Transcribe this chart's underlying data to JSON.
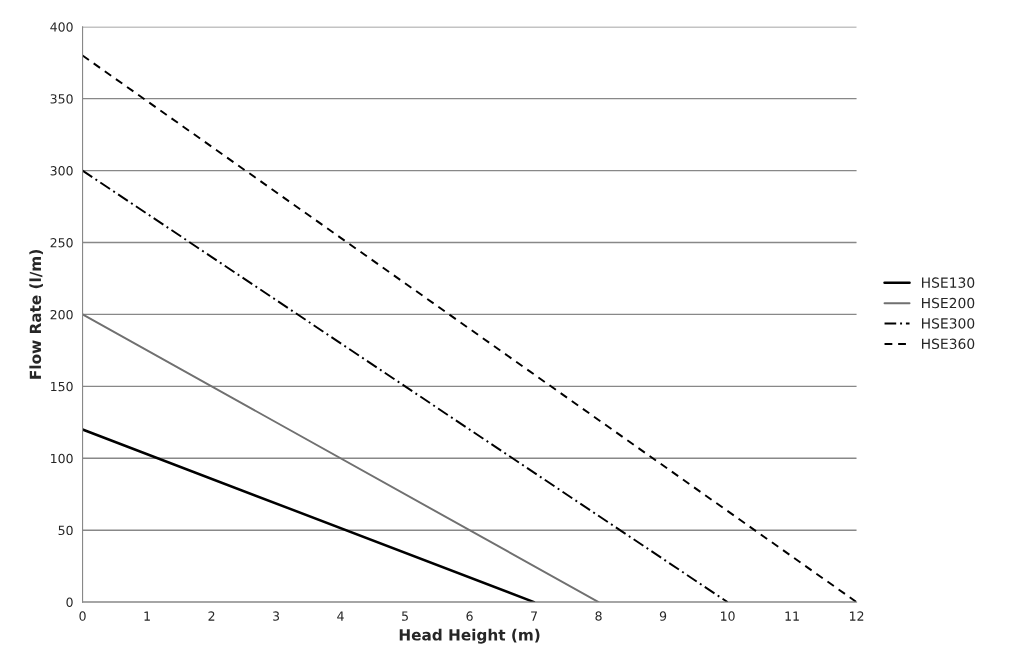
{
  "chart_data": {
    "type": "line",
    "xlabel": "Head Height (m)",
    "ylabel": "Flow Rate (l/m)",
    "xlim": [
      0,
      12
    ],
    "xticks": [
      0,
      1,
      2,
      3,
      4,
      5,
      6,
      7,
      8,
      9,
      10,
      11,
      12
    ],
    "ylim": [
      0,
      400
    ],
    "yticks": [
      0,
      50,
      100,
      150,
      200,
      250,
      300,
      350,
      400
    ],
    "grid": "y",
    "legend": "right",
    "marker": "none",
    "series": [
      {
        "name": "HSE130",
        "color": "#000000",
        "x": [
          0,
          7
        ],
        "values": [
          120,
          0
        ],
        "line_style": "solid"
      },
      {
        "name": "HSE200",
        "color": "#707070",
        "x": [
          0,
          8
        ],
        "values": [
          200,
          0
        ],
        "line_style": "solid"
      },
      {
        "name": "HSE300",
        "color": "#000000",
        "x": [
          0,
          10
        ],
        "values": [
          300,
          0
        ],
        "line_style": "dashdot"
      },
      {
        "name": "HSE360",
        "color": "#000000",
        "x": [
          0,
          12
        ],
        "values": [
          380,
          0
        ],
        "line_style": "dashed"
      }
    ]
  }
}
